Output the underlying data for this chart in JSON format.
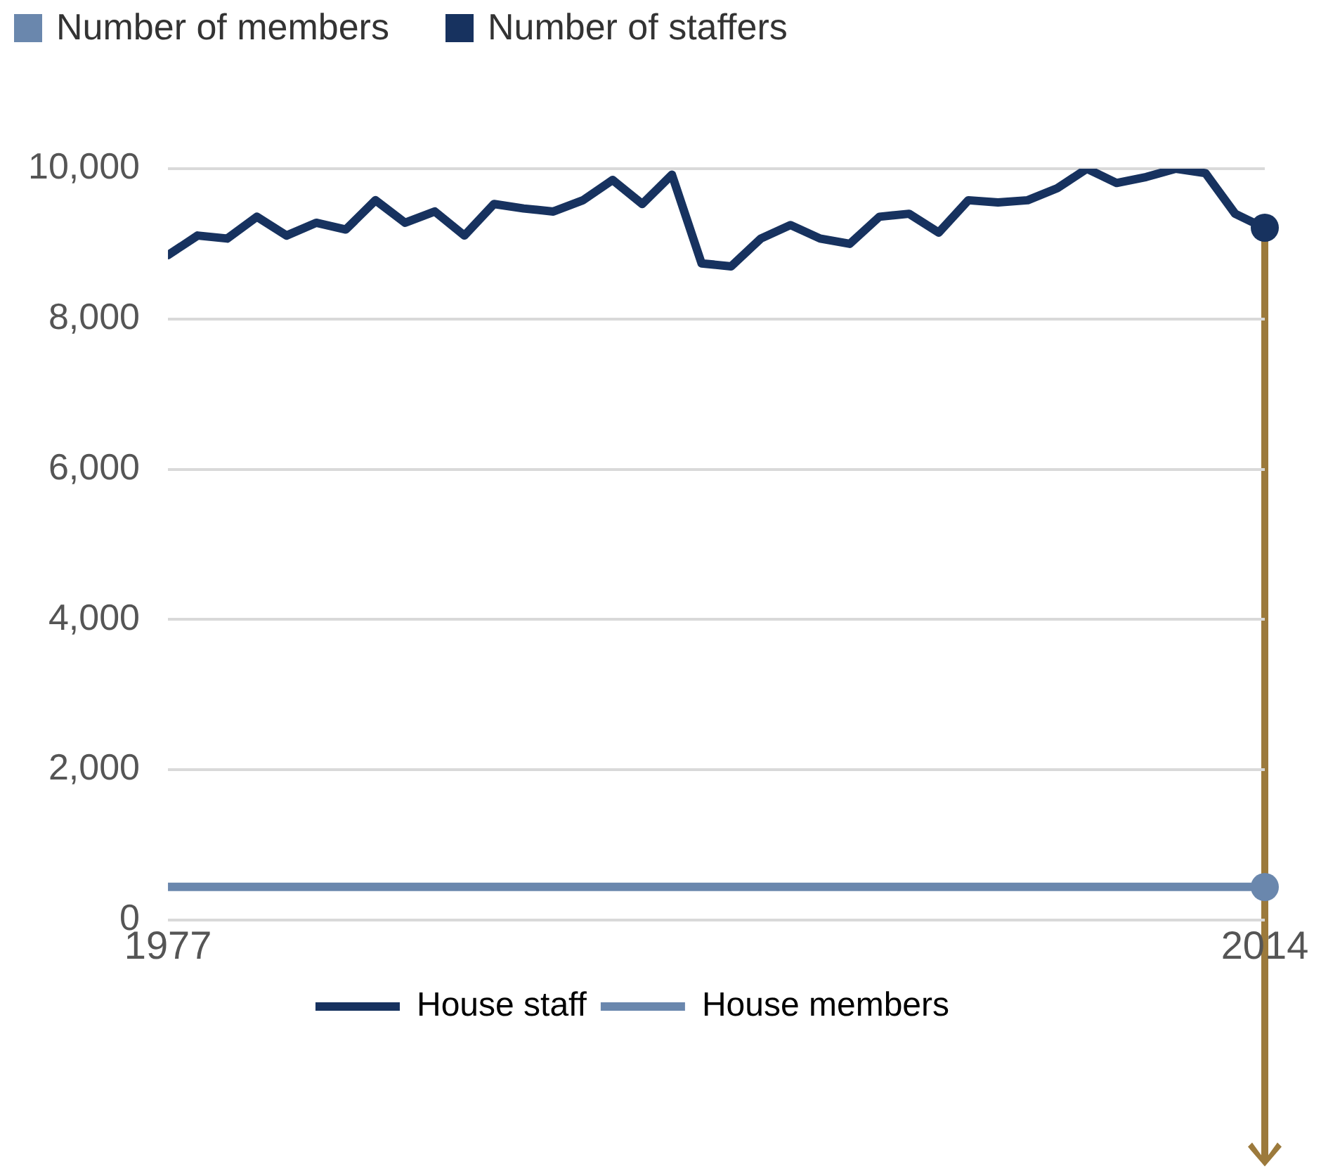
{
  "chart_data": {
    "type": "line",
    "x": [
      1977,
      1978,
      1979,
      1980,
      1981,
      1982,
      1983,
      1984,
      1985,
      1986,
      1987,
      1988,
      1989,
      1990,
      1991,
      1992,
      1993,
      1994,
      1995,
      1996,
      1997,
      1998,
      1999,
      2000,
      2001,
      2002,
      2003,
      2004,
      2005,
      2006,
      2007,
      2008,
      2009,
      2010,
      2011,
      2012,
      2013,
      2014
    ],
    "series": [
      {
        "name": "House staff",
        "color": "#17325f",
        "values": [
          8850,
          9110,
          9070,
          9360,
          9110,
          9280,
          9190,
          9580,
          9280,
          9430,
          9110,
          9530,
          9470,
          9430,
          9580,
          9850,
          9530,
          9920,
          8740,
          8700,
          9070,
          9250,
          9070,
          9000,
          9360,
          9400,
          9150,
          9580,
          9550,
          9580,
          9740,
          10000,
          9810,
          9890,
          10000,
          9940,
          9400,
          9210
        ]
      },
      {
        "name": "House members",
        "color": "#6a87ad",
        "values": [
          440,
          440,
          440,
          440,
          440,
          440,
          440,
          440,
          440,
          440,
          440,
          440,
          440,
          440,
          440,
          440,
          440,
          440,
          440,
          440,
          440,
          440,
          440,
          440,
          440,
          440,
          440,
          440,
          440,
          440,
          440,
          440,
          440,
          440,
          440,
          440,
          440,
          440
        ]
      }
    ],
    "xlim": [
      1977,
      2014
    ],
    "xticks": [
      1977,
      2014
    ],
    "ylim": [
      0,
      10000
    ],
    "yticks": [
      0,
      {
        "value": 2000,
        "label": "2,000"
      },
      {
        "value": 4000,
        "label": "4,000"
      },
      {
        "value": 6000,
        "label": "6,000"
      },
      {
        "value": 8000,
        "label": "8,000"
      },
      {
        "value": 10000,
        "label": "10,000"
      }
    ],
    "grid": "y",
    "legend": "bottom",
    "annotations": [
      "Number of members",
      "Number of staffers"
    ]
  }
}
